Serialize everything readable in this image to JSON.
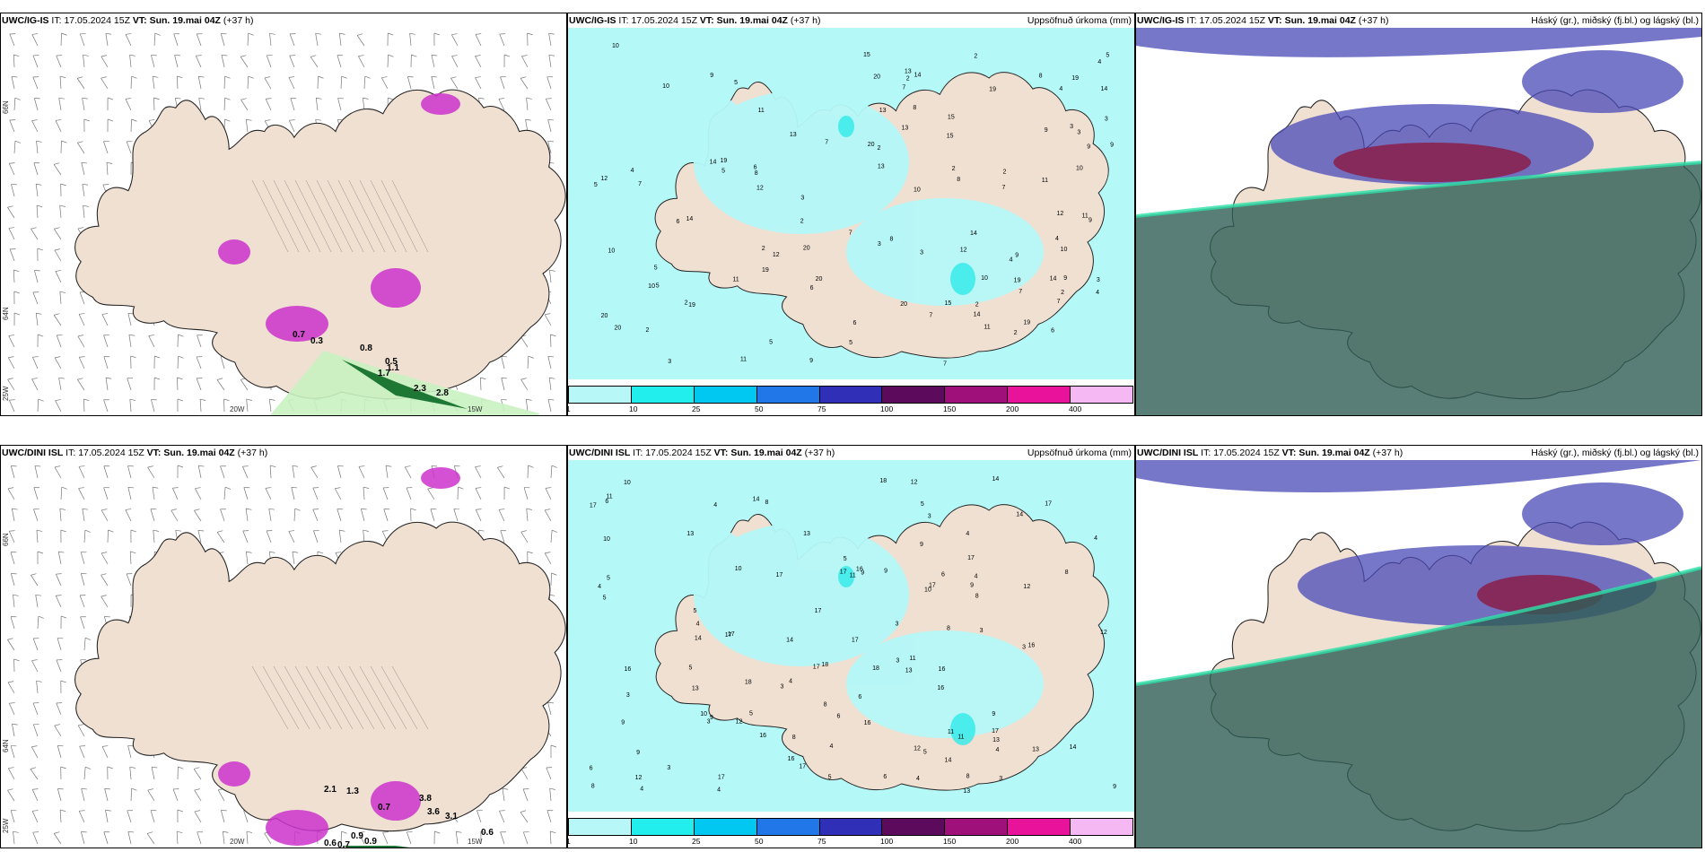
{
  "rows": [
    {
      "id": "top",
      "models": [
        "UWC/IG-IS",
        "UWC/IG-IS",
        "UWC/IG-IS"
      ]
    },
    {
      "id": "bottom",
      "models": [
        "UWC/DINI ISL",
        "UWC/DINI ISL",
        "UWC/DINI ISL"
      ]
    }
  ],
  "header": {
    "it_label": "IT:",
    "it_value": "17.05.2024 15Z",
    "vt_label": "VT: Sun. 19.mai 04Z",
    "lead": "(+37 h)"
  },
  "titles": {
    "precip": "Uppsöfnuð úrkoma (mm)",
    "clouds": "Háský (gr.), miðský (fj.bl.) og lágský (bl.)"
  },
  "axis_labels": {
    "lon_20w": "20W",
    "lon_15w": "15W",
    "lat_66n": "66N",
    "lat_64n": "64N",
    "lon_25w": "25W"
  },
  "legend": {
    "ticks": [
      "1",
      "10",
      "25",
      "50",
      "75",
      "100",
      "150",
      "200",
      "400"
    ],
    "colors": [
      "#b8f7f7",
      "#22eeee",
      "#00c8f0",
      "#2277e8",
      "#2f2fb8",
      "#5c0a5c",
      "#a0107a",
      "#e8129b",
      "#f5b8f2"
    ]
  },
  "colors": {
    "land": "#efe0d2",
    "precip_light": "#b5f8f8",
    "precip_mid": "#2eeaea",
    "snow_purple": "#cc33cc",
    "rain_green": "#0b6a25",
    "rain_light": "#c8f2c0",
    "sea_dark": "#2e5e55",
    "cloud_high": "#4a4ab8",
    "cloud_mid": "#8a1f4a"
  },
  "map_values": {
    "top_left": [
      "0.8",
      "0.7",
      "0.3",
      "1.1",
      "1.7",
      "2.3",
      "2.8",
      "0.5"
    ],
    "bottom_left": [
      "0.6",
      "0.7",
      "0.9",
      "0.9",
      "0.7",
      "3.8",
      "3.6",
      "3.1",
      "0.6",
      "2.1",
      "1.3"
    ],
    "top_mid": [
      "3",
      "5",
      "6",
      "11",
      "14",
      "20",
      "12",
      "10",
      "8",
      "9",
      "7",
      "4",
      "2",
      "13",
      "15",
      "19"
    ],
    "bottom_mid": [
      "4",
      "3",
      "16",
      "14",
      "12",
      "17",
      "18",
      "10",
      "6",
      "8",
      "5",
      "11",
      "13",
      "9"
    ]
  }
}
